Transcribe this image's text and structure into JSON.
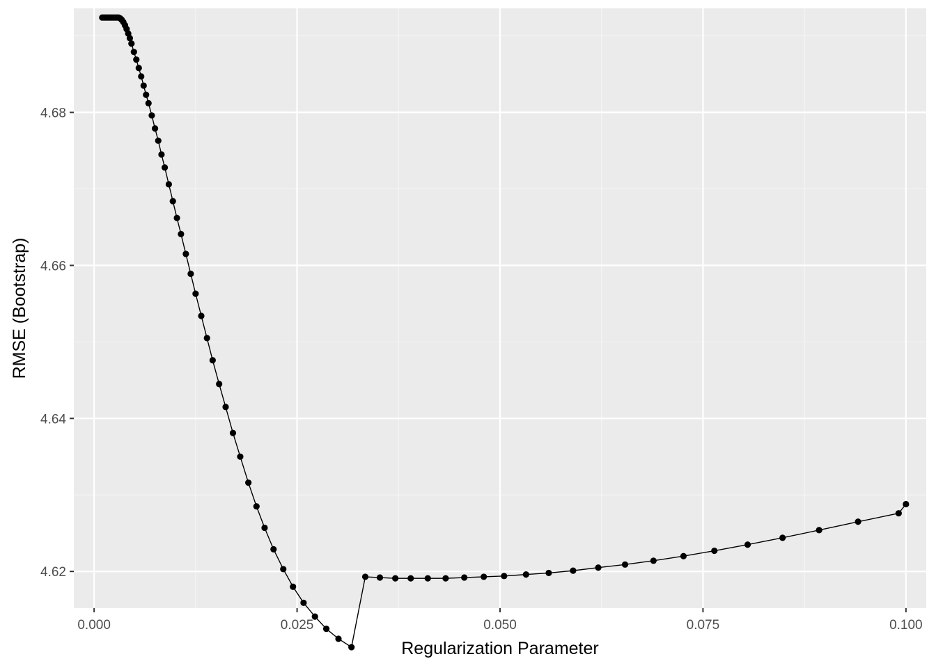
{
  "chart_data": {
    "type": "line",
    "title": "",
    "xlabel": "Regularization Parameter",
    "ylabel": "RMSE (Bootstrap)",
    "xlim": [
      -0.0025,
      0.1025
    ],
    "ylim": [
      4.6152,
      4.6936
    ],
    "x_ticks": [
      {
        "value": 0.0,
        "label": "0.000"
      },
      {
        "value": 0.025,
        "label": "0.025"
      },
      {
        "value": 0.05,
        "label": "0.050"
      },
      {
        "value": 0.075,
        "label": "0.075"
      },
      {
        "value": 0.1,
        "label": "0.100"
      }
    ],
    "y_ticks": [
      {
        "value": 4.62,
        "label": "4.62"
      },
      {
        "value": 4.64,
        "label": "4.64"
      },
      {
        "value": 4.66,
        "label": "4.66"
      },
      {
        "value": 4.68,
        "label": "4.68"
      }
    ],
    "grid": true,
    "legend": "none",
    "colors": {
      "panel": "#EBEBEB",
      "grid_major": "#FFFFFF",
      "grid_minor": "#F5F5F5",
      "series": "#000000",
      "tick": "#333333"
    },
    "series": [
      {
        "x": [
          0.001,
          0.0012,
          0.0014,
          0.0016,
          0.0018,
          0.002,
          0.0022,
          0.0024,
          0.0026,
          0.0028,
          0.003,
          0.0032,
          0.0034,
          0.0036,
          0.0038,
          0.004,
          0.0042,
          0.0044,
          0.0046,
          0.0049,
          0.0052,
          0.0055,
          0.0058,
          0.0061,
          0.0064,
          0.0067,
          0.0071,
          0.0075,
          0.0079,
          0.0083,
          0.0087,
          0.0092,
          0.0097,
          0.0102,
          0.0107,
          0.0113,
          0.0119,
          0.0125,
          0.0132,
          0.0139,
          0.0146,
          0.0154,
          0.0162,
          0.0171,
          0.018,
          0.019,
          0.02,
          0.021,
          0.0221,
          0.0233,
          0.0245,
          0.0258,
          0.0272,
          0.0286,
          0.0301,
          0.0317,
          0.0334,
          0.0352,
          0.0371,
          0.039,
          0.0411,
          0.0433,
          0.0456,
          0.048,
          0.0505,
          0.0532,
          0.056,
          0.059,
          0.0621,
          0.0654,
          0.0689,
          0.0726,
          0.0764,
          0.0805,
          0.0848,
          0.0893,
          0.0941,
          0.0991,
          0.1
        ],
        "y": [
          4.6924,
          4.6924,
          4.6924,
          4.6924,
          4.6924,
          4.6924,
          4.6924,
          4.6924,
          4.6924,
          4.6924,
          4.6924,
          4.6923,
          4.6921,
          4.6918,
          4.6914,
          4.6909,
          4.6903,
          4.6897,
          4.689,
          4.6879,
          4.6869,
          4.6858,
          4.6847,
          4.6835,
          4.6823,
          4.6812,
          4.6796,
          4.6779,
          4.6763,
          4.6745,
          4.6728,
          4.6706,
          4.6684,
          4.6662,
          4.6641,
          4.6615,
          4.6589,
          4.6563,
          4.6534,
          4.6505,
          4.6476,
          4.6445,
          4.6415,
          4.6381,
          4.635,
          4.6316,
          4.6285,
          4.6257,
          4.6229,
          4.6203,
          4.618,
          4.6159,
          4.6141,
          4.6125,
          4.6112,
          4.6101,
          4.6193,
          4.6192,
          4.6191,
          4.6191,
          4.6191,
          4.6191,
          4.6192,
          4.6193,
          4.6194,
          4.6196,
          4.6198,
          4.6201,
          4.6205,
          4.6209,
          4.6214,
          4.622,
          4.6227,
          4.6235,
          4.6244,
          4.6254,
          4.6265,
          4.6276,
          4.6288
        ]
      }
    ]
  }
}
